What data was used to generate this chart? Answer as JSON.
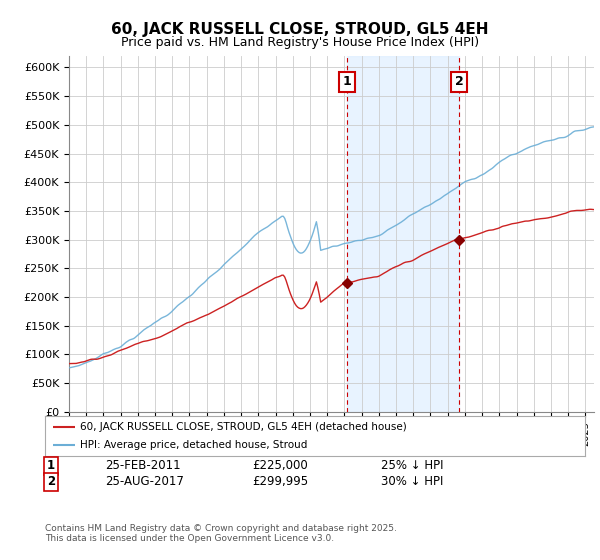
{
  "title": "60, JACK RUSSELL CLOSE, STROUD, GL5 4EH",
  "subtitle": "Price paid vs. HM Land Registry's House Price Index (HPI)",
  "ylabel_ticks": [
    "£0",
    "£50K",
    "£100K",
    "£150K",
    "£200K",
    "£250K",
    "£300K",
    "£350K",
    "£400K",
    "£450K",
    "£500K",
    "£550K",
    "£600K"
  ],
  "ylim": [
    0,
    620000
  ],
  "ytick_vals": [
    0,
    50000,
    100000,
    150000,
    200000,
    250000,
    300000,
    350000,
    400000,
    450000,
    500000,
    550000,
    600000
  ],
  "xmin": 1995.0,
  "xmax": 2025.5,
  "sale1_x": 2011.15,
  "sale1_y": 225000,
  "sale2_x": 2017.65,
  "sale2_y": 299995,
  "annotation1": {
    "label": "1",
    "date": "25-FEB-2011",
    "price": "£225,000",
    "hpi_text": "25% ↓ HPI"
  },
  "annotation2": {
    "label": "2",
    "date": "25-AUG-2017",
    "price": "£299,995",
    "hpi_text": "30% ↓ HPI"
  },
  "shaded_region_start": 2011.15,
  "shaded_region_end": 2017.65,
  "line_red_color": "#cc2222",
  "line_blue_color": "#6baed6",
  "annot_color": "#cc0000",
  "legend_line1": "60, JACK RUSSELL CLOSE, STROUD, GL5 4EH (detached house)",
  "legend_line2": "HPI: Average price, detached house, Stroud",
  "footer": "Contains HM Land Registry data © Crown copyright and database right 2025.\nThis data is licensed under the Open Government Licence v3.0.",
  "background_color": "#ffffff",
  "grid_color": "#cccccc",
  "shaded_color": "#ddeeff"
}
